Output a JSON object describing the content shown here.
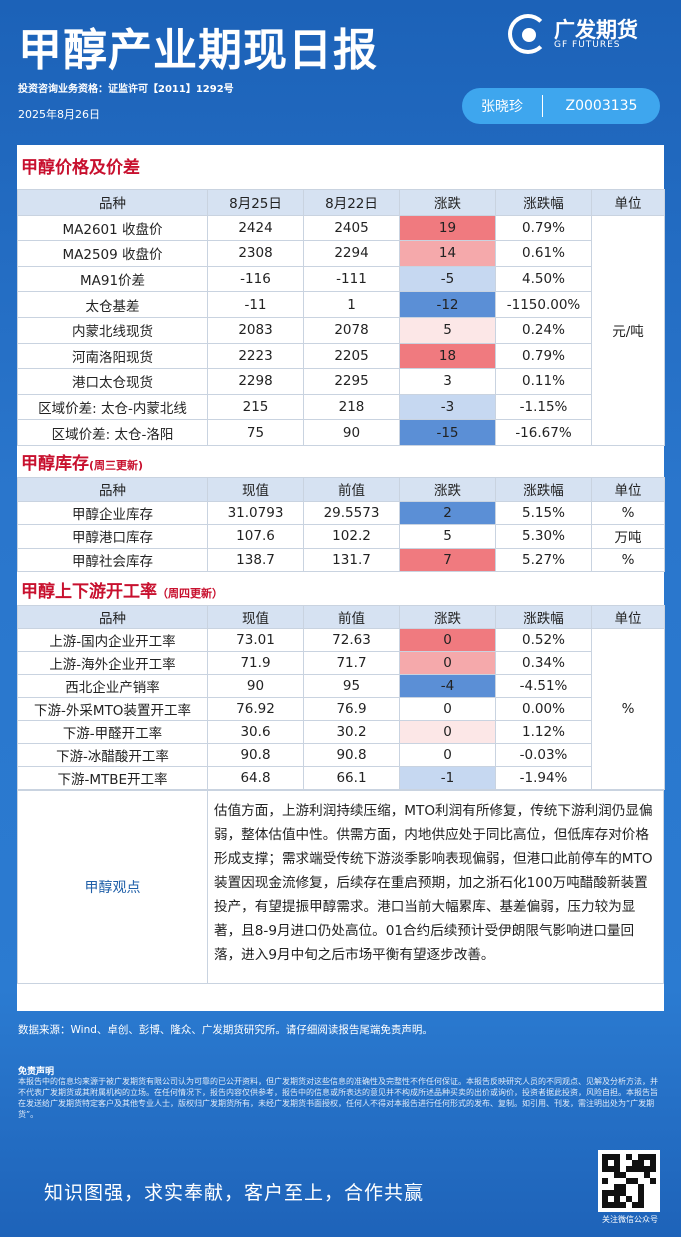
{
  "header": {
    "title": "甲醇产业期现日报",
    "logo_cn": "广发期货",
    "logo_en": "GF FUTURES",
    "license": "投资咨询业务资格：证监许可【2011】1292号",
    "date": "2025年8月26日",
    "analyst_name": "张晓珍",
    "analyst_code": "Z0003135"
  },
  "colors": {
    "up_strong": "#f07a7f",
    "up_mid": "#f5a9ab",
    "up_light": "#fce7e7",
    "down_strong": "#5b8fd6",
    "down_mid": "#9ebce6",
    "down_light": "#c6d8f1"
  },
  "price": {
    "title": "甲醇价格及价差",
    "headers": [
      "品种",
      "8月25日",
      "8月22日",
      "涨跌",
      "涨跌幅",
      "单位"
    ],
    "unit": "元/吨",
    "rows": [
      {
        "name": "MA2601 收盘价",
        "a": "2424",
        "b": "2405",
        "chg": "19",
        "pct": "0.79%",
        "tone": "up_strong"
      },
      {
        "name": "MA2509 收盘价",
        "a": "2308",
        "b": "2294",
        "chg": "14",
        "pct": "0.61%",
        "tone": "up_mid"
      },
      {
        "name": "MA91价差",
        "a": "-116",
        "b": "-111",
        "chg": "-5",
        "pct": "4.50%",
        "tone": "down_light"
      },
      {
        "name": "太仓基差",
        "a": "-11",
        "b": "1",
        "chg": "-12",
        "pct": "-1150.00%",
        "tone": "down_strong"
      },
      {
        "name": "内蒙北线现货",
        "a": "2083",
        "b": "2078",
        "chg": "5",
        "pct": "0.24%",
        "tone": "up_light"
      },
      {
        "name": "河南洛阳现货",
        "a": "2223",
        "b": "2205",
        "chg": "18",
        "pct": "0.79%",
        "tone": "up_strong"
      },
      {
        "name": "港口太仓现货",
        "a": "2298",
        "b": "2295",
        "chg": "3",
        "pct": "0.11%",
        "tone": "none"
      },
      {
        "name": "区域价差: 太仓-内蒙北线",
        "a": "215",
        "b": "218",
        "chg": "-3",
        "pct": "-1.15%",
        "tone": "down_light"
      },
      {
        "name": "区域价差: 太仓-洛阳",
        "a": "75",
        "b": "90",
        "chg": "-15",
        "pct": "-16.67%",
        "tone": "down_strong"
      }
    ]
  },
  "inventory": {
    "title": "甲醇库存",
    "note": "(周三更新)",
    "headers": [
      "品种",
      "现值",
      "前值",
      "涨跌",
      "涨跌幅",
      "单位"
    ],
    "rows": [
      {
        "name": "甲醇企业库存",
        "a": "31.0793",
        "b": "29.5573",
        "chg": "2",
        "pct": "5.15%",
        "unit": "%",
        "tone": "down_strong"
      },
      {
        "name": "甲醇港口库存",
        "a": "107.6",
        "b": "102.2",
        "chg": "5",
        "pct": "5.30%",
        "unit": "万吨",
        "tone": "none"
      },
      {
        "name": "甲醇社会库存",
        "a": "138.7",
        "b": "131.7",
        "chg": "7",
        "pct": "5.27%",
        "unit": "%",
        "tone": "up_strong"
      }
    ]
  },
  "operating": {
    "title": "甲醇上下游开工率",
    "note": "（周四更新）",
    "headers": [
      "品种",
      "现值",
      "前值",
      "涨跌",
      "涨跌幅",
      "单位"
    ],
    "unit": "%",
    "rows": [
      {
        "name": "上游-国内企业开工率",
        "a": "73.01",
        "b": "72.63",
        "chg": "0",
        "pct": "0.52%",
        "tone": "up_strong"
      },
      {
        "name": "上游-海外企业开工率",
        "a": "71.9",
        "b": "71.7",
        "chg": "0",
        "pct": "0.34%",
        "tone": "up_mid"
      },
      {
        "name": "西北企业产销率",
        "a": "90",
        "b": "95",
        "chg": "-4",
        "pct": "-4.51%",
        "tone": "down_strong"
      },
      {
        "name": "下游-外采MTO装置开工率",
        "a": "76.92",
        "b": "76.9",
        "chg": "0",
        "pct": "0.00%",
        "tone": "none"
      },
      {
        "name": "下游-甲醛开工率",
        "a": "30.6",
        "b": "30.2",
        "chg": "0",
        "pct": "1.12%",
        "tone": "up_light"
      },
      {
        "name": "下游-冰醋酸开工率",
        "a": "90.8",
        "b": "90.8",
        "chg": "0",
        "pct": "-0.03%",
        "tone": "none"
      },
      {
        "name": "下游-MTBE开工率",
        "a": "64.8",
        "b": "66.1",
        "chg": "-1",
        "pct": "-1.94%",
        "tone": "down_light"
      }
    ]
  },
  "opinion": {
    "label": "甲醇观点",
    "text": "估值方面，上游利润持续压缩，MTO利润有所修复，传统下游利润仍显偏弱，整体估值中性。供需方面，内地供应处于同比高位，但低库存对价格形成支撑；需求端受传统下游淡季影响表现偏弱，但港口此前停车的MTO装置因现金流修复，后续存在重启预期，加之浙石化100万吨醋酸新装置投产，有望提振甲醇需求。港口当前大幅累库、基差偏弱，压力较为显著，且8-9月进口仍处高位。01合约后续预计受伊朗限气影响进口量回落，进入9月中旬之后市场平衡有望逐步改善。"
  },
  "footer": {
    "source": "数据来源：Wind、卓创、彭博、隆众、广发期货研究所。请仔细阅读报告尾端免责声明。",
    "disclaimer_title": "免责声明",
    "disclaimer": "本报告中的信息均来源于被广发期货有限公司认为可靠的已公开资料，但广发期货对这些信息的准确性及完整性不作任何保证。本报告反映研究人员的不同观点、见解及分析方法，并不代表广发期货或其附属机构的立场。在任何情况下，报告内容仅供参考，报告中的信息或所表达的意见并不构成所述品种买卖的出价或询价，投资者据此投资，风险自担。本报告旨在发送给广发期货特定客户及其他专业人士，版权归广发期货所有，未经广发期货书面授权，任何人不得对本报告进行任何形式的发布、复制。如引用、刊发，需注明出处为“广发期货”。",
    "slogan": "知识图强，求实奉献，客户至上，合作共赢",
    "qr_label": "关注微信公众号"
  }
}
